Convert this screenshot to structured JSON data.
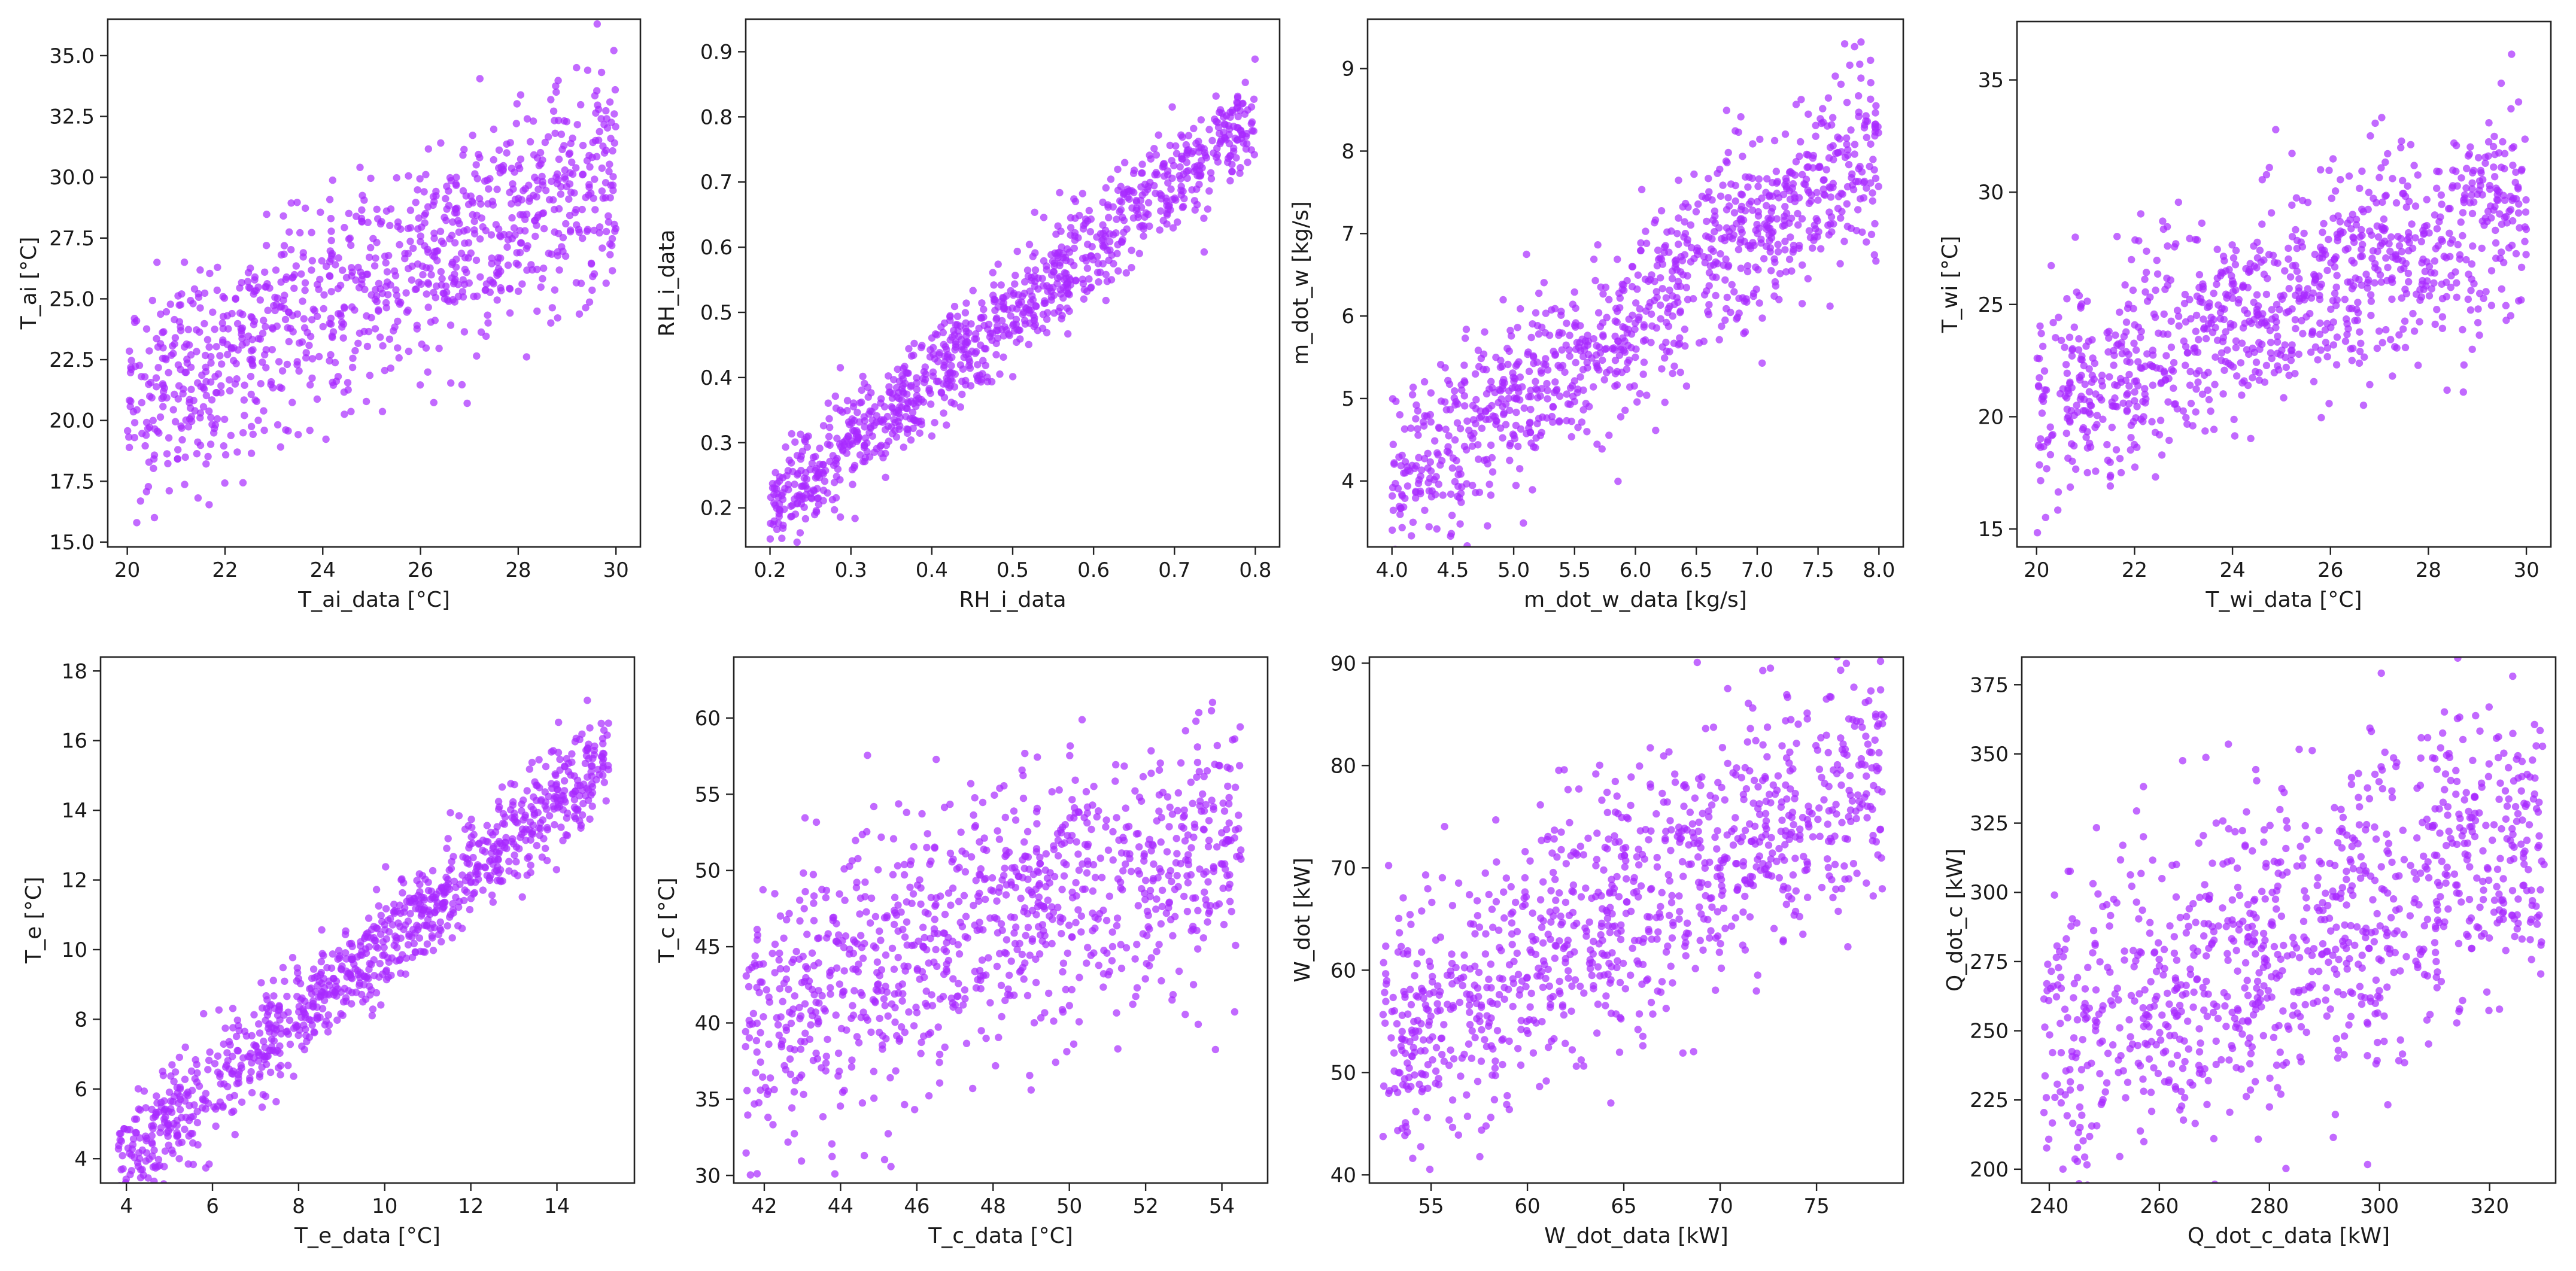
{
  "figure": {
    "background": "#ffffff",
    "marker_color": "#a829ff",
    "marker_alpha": 0.7
  },
  "chart_data": [
    {
      "type": "scatter",
      "title": "",
      "xlabel": "T_ai_data [°C]",
      "ylabel": "T_ai [°C]",
      "xlim": [
        19.6,
        30.5
      ],
      "ylim": [
        14.8,
        36.5
      ],
      "xticks": [
        20,
        22,
        24,
        26,
        28,
        30
      ],
      "yticks": [
        15.0,
        17.5,
        20.0,
        22.5,
        25.0,
        27.5,
        30.0,
        32.5,
        35.0
      ],
      "ytick_decimals": 1,
      "trend": {
        "x_range": [
          20,
          30
        ],
        "y_at_min": 20.7,
        "y_at_max": 30.3,
        "noise_sd": 2.3,
        "n": 1000
      },
      "grid": false
    },
    {
      "type": "scatter",
      "title": "",
      "xlabel": "RH_i_data",
      "ylabel": "RH_i_data",
      "xlim": [
        0.17,
        0.83
      ],
      "ylim": [
        0.14,
        0.95
      ],
      "xticks": [
        0.2,
        0.3,
        0.4,
        0.5,
        0.6,
        0.7,
        0.8
      ],
      "yticks": [
        0.2,
        0.3,
        0.4,
        0.5,
        0.6,
        0.7,
        0.8,
        0.9
      ],
      "ytick_decimals": 1,
      "trend": {
        "x_range": [
          0.2,
          0.8
        ],
        "y_at_min": 0.2,
        "y_at_max": 0.8,
        "noise_sd": 0.04,
        "n": 1000
      },
      "grid": false
    },
    {
      "type": "scatter",
      "title": "",
      "xlabel": "m_dot_w_data [kg/s]",
      "ylabel": "m_dot_w [kg/s]",
      "xlim": [
        3.8,
        8.2
      ],
      "ylim": [
        3.2,
        9.6
      ],
      "xticks": [
        4.0,
        4.5,
        5.0,
        5.5,
        6.0,
        6.5,
        7.0,
        7.5,
        8.0
      ],
      "yticks": [
        4,
        5,
        6,
        7,
        8,
        9
      ],
      "ytick_decimals": 0,
      "trend": {
        "x_range": [
          4.0,
          8.0
        ],
        "y_at_min": 4.0,
        "y_at_max": 8.0,
        "noise_sd": 0.55,
        "n": 1000
      },
      "grid": false
    },
    {
      "type": "scatter",
      "title": "",
      "xlabel": "T_wi_data [°C]",
      "ylabel": "T_wi [°C]",
      "xlim": [
        19.6,
        30.5
      ],
      "ylim": [
        14.2,
        37.6
      ],
      "xticks": [
        20,
        22,
        24,
        26,
        28,
        30
      ],
      "yticks": [
        15,
        20,
        25,
        30,
        35
      ],
      "ytick_decimals": 0,
      "trend": {
        "x_range": [
          20,
          30
        ],
        "y_at_min": 20.5,
        "y_at_max": 29.5,
        "noise_sd": 2.4,
        "n": 1000
      },
      "grid": false
    },
    {
      "type": "scatter",
      "title": "",
      "xlabel": "T_e_data [°C]",
      "ylabel": "T_e [°C]",
      "xlim": [
        3.4,
        15.8
      ],
      "ylim": [
        3.3,
        18.4
      ],
      "xticks": [
        4,
        6,
        8,
        10,
        12,
        14
      ],
      "yticks": [
        4,
        6,
        8,
        10,
        12,
        14,
        16,
        18
      ],
      "ytick_decimals": 0,
      "trend": {
        "x_range": [
          3.8,
          15.2
        ],
        "y_at_min": 3.9,
        "y_at_max": 15.5,
        "noise_sd": 0.75,
        "n": 1000
      },
      "grid": false
    },
    {
      "type": "scatter",
      "title": "",
      "xlabel": "T_c_data [°C]",
      "ylabel": "T_c [°C]",
      "xlim": [
        41.2,
        55.2
      ],
      "ylim": [
        29.5,
        64
      ],
      "xticks": [
        42,
        44,
        46,
        48,
        50,
        52,
        54
      ],
      "yticks": [
        30,
        35,
        40,
        45,
        50,
        55,
        60
      ],
      "ytick_decimals": 0,
      "trend": {
        "x_range": [
          41.5,
          54.5
        ],
        "y_at_min": 40.5,
        "y_at_max": 52.5,
        "noise_sd": 4.5,
        "n": 1000
      },
      "grid": false
    },
    {
      "type": "scatter",
      "title": "",
      "xlabel": "W_dot_data [kW]",
      "ylabel": "W_dot [kW]",
      "xlim": [
        51.8,
        79.5
      ],
      "ylim": [
        39.2,
        90.6
      ],
      "xticks": [
        55,
        60,
        65,
        70,
        75
      ],
      "yticks": [
        40,
        50,
        60,
        70,
        80,
        90
      ],
      "ytick_decimals": 0,
      "trend": {
        "x_range": [
          52.5,
          78.5
        ],
        "y_at_min": 53,
        "y_at_max": 80,
        "noise_sd": 6.5,
        "n": 1000
      },
      "grid": false
    },
    {
      "type": "scatter",
      "title": "",
      "xlabel": "Q_dot_c_data [kW]",
      "ylabel": "Q_dot_c [kW]",
      "xlim": [
        235,
        332
      ],
      "ylim": [
        195,
        385
      ],
      "xticks": [
        240,
        260,
        280,
        300,
        320
      ],
      "yticks": [
        200,
        225,
        250,
        275,
        300,
        325,
        350,
        375
      ],
      "ytick_decimals": 0,
      "trend": {
        "x_range": [
          239,
          330
        ],
        "y_at_min": 245,
        "y_at_max": 320,
        "noise_sd": 28,
        "n": 1000
      },
      "grid": false
    }
  ]
}
